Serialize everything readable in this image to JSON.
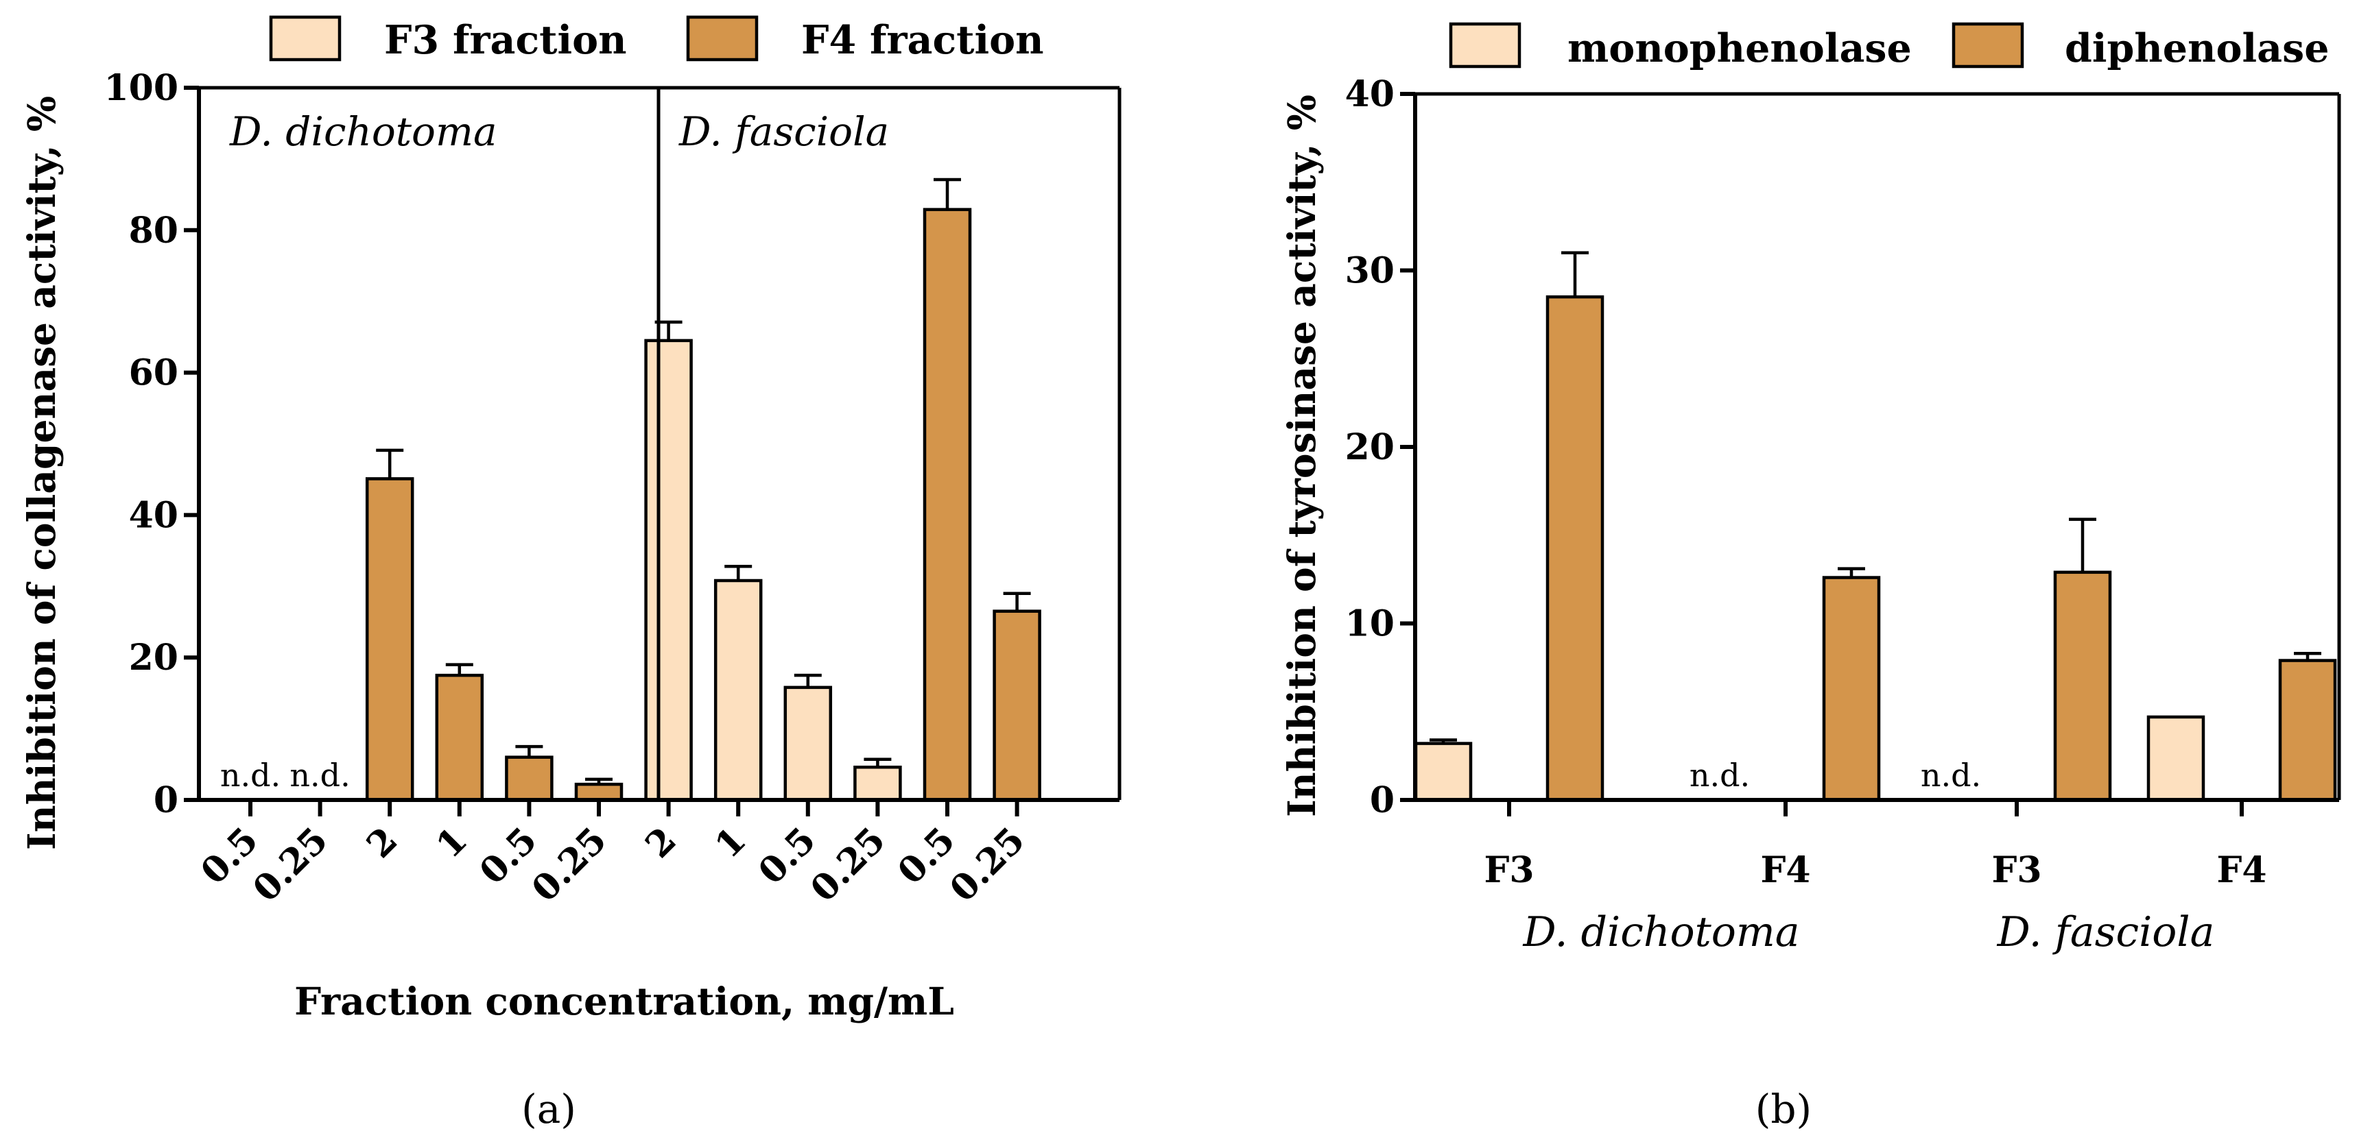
{
  "colors": {
    "light": "#fde0bf",
    "dark": "#d4954b",
    "axis": "#000000"
  },
  "panels": {
    "a": {
      "label": "(a)"
    },
    "b": {
      "label": "(b)"
    }
  },
  "chart_data": [
    {
      "type": "bar",
      "panel": "a",
      "ylabel": "Inhibition of collagenase activity, %",
      "xlabel": "Fraction concentration, mg/mL",
      "ylim": [
        0,
        100
      ],
      "yticks": [
        0,
        20,
        40,
        60,
        80,
        100
      ],
      "legend": [
        {
          "name": "F3 fraction",
          "color": "light"
        },
        {
          "name": "F4 fraction",
          "color": "dark"
        }
      ],
      "groups": [
        {
          "species": "D. dichotoma",
          "categories": [
            "0.5",
            "0.25",
            "2",
            "1",
            "0.5",
            "0.25"
          ]
        },
        {
          "species": "D. fasciola",
          "categories": [
            "2",
            "1",
            "0.5",
            "0.25",
            "0.5",
            "0.25"
          ]
        }
      ],
      "nd_label": "n.d.",
      "bars": [
        {
          "group": 0,
          "category": "0.5",
          "series": "F3 fraction",
          "color": "light",
          "value": null,
          "error": null
        },
        {
          "group": 0,
          "category": "0.25",
          "series": "F3 fraction",
          "color": "light",
          "value": null,
          "error": null
        },
        {
          "group": 0,
          "category": "2",
          "series": "F4 fraction",
          "color": "dark",
          "value": 45.1,
          "error": 4.0
        },
        {
          "group": 0,
          "category": "1",
          "series": "F4 fraction",
          "color": "dark",
          "value": 17.5,
          "error": 1.5
        },
        {
          "group": 0,
          "category": "0.5",
          "series": "F4 fraction",
          "color": "dark",
          "value": 6.0,
          "error": 1.5
        },
        {
          "group": 0,
          "category": "0.25",
          "series": "F4 fraction",
          "color": "dark",
          "value": 2.2,
          "error": 0.7
        },
        {
          "group": 1,
          "category": "2",
          "series": "F3 fraction",
          "color": "light",
          "value": 64.5,
          "error": 2.6
        },
        {
          "group": 1,
          "category": "1",
          "series": "F3 fraction",
          "color": "light",
          "value": 30.8,
          "error": 2.0
        },
        {
          "group": 1,
          "category": "0.5",
          "series": "F3 fraction",
          "color": "light",
          "value": 15.8,
          "error": 1.7
        },
        {
          "group": 1,
          "category": "0.25",
          "series": "F3 fraction",
          "color": "light",
          "value": 4.6,
          "error": 1.1
        },
        {
          "group": 1,
          "category": "0.5",
          "series": "F4 fraction",
          "color": "dark",
          "value": 82.9,
          "error": 4.2
        },
        {
          "group": 1,
          "category": "0.25",
          "series": "F4 fraction",
          "color": "dark",
          "value": 26.5,
          "error": 2.5
        }
      ]
    },
    {
      "type": "bar",
      "panel": "b",
      "ylabel": "Inhibition of tyrosinase activity, %",
      "ylim": [
        0,
        40
      ],
      "yticks": [
        0,
        10,
        20,
        30,
        40
      ],
      "legend": [
        {
          "name": "monophenolase",
          "color": "light"
        },
        {
          "name": "diphenolase",
          "color": "dark"
        }
      ],
      "categories": [
        "F3",
        "F4",
        "F3",
        "F4"
      ],
      "species": [
        "D. dichotoma",
        "D. fasciola"
      ],
      "nd_label": "n.d.",
      "series": [
        {
          "name": "monophenolase",
          "color": "light",
          "values": [
            3.2,
            null,
            null,
            4.7
          ],
          "errors": [
            0.2,
            null,
            null,
            0.0
          ]
        },
        {
          "name": "diphenolase",
          "color": "dark",
          "values": [
            28.5,
            12.6,
            12.9,
            7.9
          ],
          "errors": [
            2.5,
            0.5,
            3.0,
            0.4
          ]
        }
      ]
    }
  ]
}
